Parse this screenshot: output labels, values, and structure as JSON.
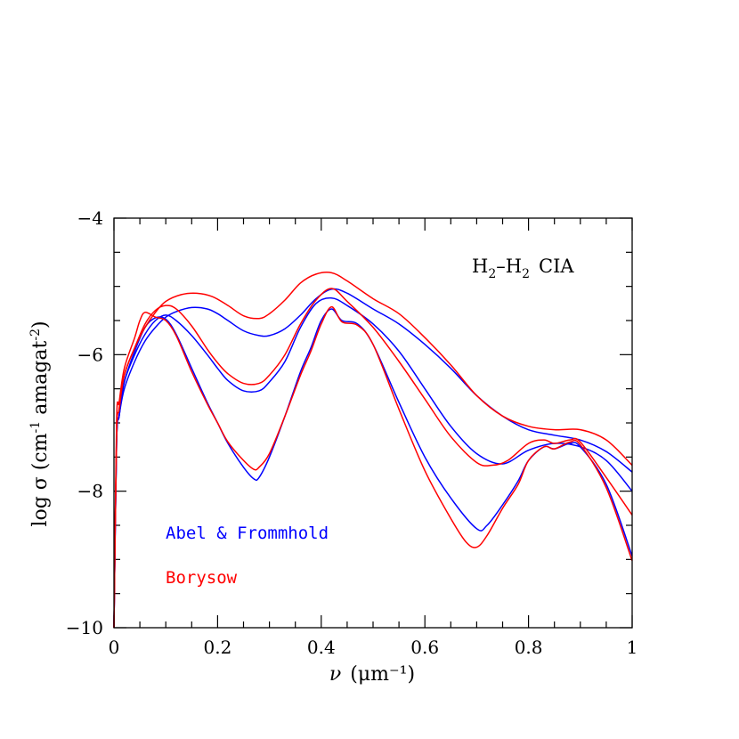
{
  "chart_data": {
    "type": "line",
    "title": "",
    "annotation": {
      "base": "H",
      "sub1": "2",
      "dash": "–",
      "base2": "H",
      "sub2": "2",
      "suffix": "CIA"
    },
    "xlabel": {
      "symbol": "ν",
      "unit": "(μm⁻¹)"
    },
    "ylabel": {
      "pre": "log σ (cm",
      "sup1": "-1",
      "mid": " amagat",
      "sup2": "-2",
      "post": ")"
    },
    "xlim": [
      0,
      1
    ],
    "ylim": [
      -10,
      -4
    ],
    "xticks": [
      0,
      0.2,
      0.4,
      0.6,
      0.8,
      1
    ],
    "xtick_labels": [
      "0",
      "0.2",
      "0.4",
      "0.6",
      "0.8",
      "1"
    ],
    "yticks": [
      -10,
      -8,
      -6,
      -4
    ],
    "ytick_labels": [
      "−10",
      "−8",
      "−6",
      "−4"
    ],
    "legend": [
      {
        "name": "Abel & Frommhold",
        "color": "#0000ff"
      },
      {
        "name": "Borysow",
        "color": "#ff0000"
      }
    ],
    "series": [
      {
        "name": "Abel & Frommhold",
        "color": "#0000ff",
        "x": [
          0,
          0.005,
          0.01,
          0.02,
          0.04,
          0.06,
          0.08,
          0.1,
          0.12,
          0.15,
          0.18,
          0.2,
          0.22,
          0.25,
          0.28,
          0.3,
          0.33,
          0.36,
          0.39,
          0.42,
          0.45,
          0.5,
          0.55,
          0.6,
          0.65,
          0.7,
          0.75,
          0.8,
          0.85,
          0.9,
          0.95,
          1.0
        ],
        "values": [
          -10,
          -7.3,
          -6.9,
          -6.5,
          -6.1,
          -5.8,
          -5.6,
          -5.45,
          -5.37,
          -5.31,
          -5.33,
          -5.4,
          -5.5,
          -5.65,
          -5.72,
          -5.72,
          -5.62,
          -5.42,
          -5.18,
          -5.04,
          -5.1,
          -5.33,
          -5.55,
          -5.85,
          -6.2,
          -6.6,
          -6.9,
          -7.1,
          -7.18,
          -7.25,
          -7.42,
          -7.72
        ]
      },
      {
        "name": "Abel & Frommhold",
        "color": "#0000ff",
        "x": [
          0,
          0.005,
          0.01,
          0.02,
          0.04,
          0.06,
          0.08,
          0.1,
          0.12,
          0.15,
          0.18,
          0.2,
          0.22,
          0.25,
          0.28,
          0.3,
          0.33,
          0.36,
          0.39,
          0.42,
          0.45,
          0.5,
          0.55,
          0.6,
          0.65,
          0.7,
          0.75,
          0.8,
          0.85,
          0.9,
          0.95,
          1.0
        ],
        "values": [
          -10,
          -7.3,
          -6.9,
          -6.4,
          -6.0,
          -5.7,
          -5.5,
          -5.42,
          -5.5,
          -5.72,
          -6.0,
          -6.2,
          -6.38,
          -6.53,
          -6.53,
          -6.4,
          -6.1,
          -5.6,
          -5.25,
          -5.17,
          -5.28,
          -5.55,
          -5.95,
          -6.5,
          -7.05,
          -7.45,
          -7.6,
          -7.4,
          -7.3,
          -7.35,
          -7.55,
          -8.0
        ]
      },
      {
        "name": "Abel & Frommhold",
        "color": "#0000ff",
        "x": [
          0,
          0.005,
          0.01,
          0.02,
          0.04,
          0.06,
          0.08,
          0.1,
          0.12,
          0.15,
          0.18,
          0.2,
          0.22,
          0.25,
          0.27,
          0.28,
          0.3,
          0.33,
          0.36,
          0.38,
          0.4,
          0.42,
          0.44,
          0.47,
          0.5,
          0.55,
          0.6,
          0.65,
          0.7,
          0.72,
          0.75,
          0.78,
          0.8,
          0.83,
          0.85,
          0.88,
          0.9,
          0.95,
          1.0
        ],
        "values": [
          -10,
          -7.3,
          -6.9,
          -6.4,
          -5.95,
          -5.6,
          -5.46,
          -5.48,
          -5.7,
          -6.2,
          -6.7,
          -7.0,
          -7.3,
          -7.65,
          -7.82,
          -7.8,
          -7.5,
          -6.9,
          -6.25,
          -5.9,
          -5.5,
          -5.33,
          -5.5,
          -5.55,
          -5.85,
          -6.7,
          -7.5,
          -8.1,
          -8.55,
          -8.5,
          -8.2,
          -7.85,
          -7.55,
          -7.35,
          -7.38,
          -7.3,
          -7.35,
          -7.9,
          -8.95
        ]
      },
      {
        "name": "Borysow",
        "color": "#ff0000",
        "x": [
          0,
          0.005,
          0.01,
          0.02,
          0.04,
          0.06,
          0.08,
          0.1,
          0.13,
          0.16,
          0.19,
          0.22,
          0.25,
          0.28,
          0.3,
          0.33,
          0.36,
          0.39,
          0.42,
          0.45,
          0.5,
          0.55,
          0.6,
          0.65,
          0.7,
          0.75,
          0.8,
          0.85,
          0.9,
          0.95,
          1.0
        ],
        "values": [
          -10,
          -7.2,
          -6.8,
          -6.3,
          -5.9,
          -5.6,
          -5.38,
          -5.22,
          -5.12,
          -5.1,
          -5.15,
          -5.28,
          -5.43,
          -5.47,
          -5.4,
          -5.2,
          -4.95,
          -4.82,
          -4.8,
          -4.92,
          -5.18,
          -5.4,
          -5.75,
          -6.15,
          -6.6,
          -6.9,
          -7.05,
          -7.1,
          -7.1,
          -7.25,
          -7.62
        ]
      },
      {
        "name": "Borysow",
        "color": "#ff0000",
        "x": [
          0,
          0.005,
          0.01,
          0.02,
          0.04,
          0.06,
          0.08,
          0.1,
          0.12,
          0.15,
          0.18,
          0.2,
          0.22,
          0.25,
          0.28,
          0.3,
          0.33,
          0.36,
          0.39,
          0.42,
          0.45,
          0.5,
          0.55,
          0.6,
          0.65,
          0.7,
          0.73,
          0.76,
          0.8,
          0.83,
          0.85,
          0.88,
          0.9,
          0.95,
          1.0
        ],
        "values": [
          -10,
          -7.2,
          -6.8,
          -6.3,
          -5.9,
          -5.55,
          -5.35,
          -5.28,
          -5.33,
          -5.58,
          -5.92,
          -6.12,
          -6.28,
          -6.42,
          -6.42,
          -6.3,
          -6.0,
          -5.55,
          -5.2,
          -5.03,
          -5.22,
          -5.6,
          -6.1,
          -6.65,
          -7.2,
          -7.58,
          -7.62,
          -7.55,
          -7.3,
          -7.25,
          -7.3,
          -7.25,
          -7.28,
          -7.8,
          -8.35
        ]
      },
      {
        "name": "Borysow",
        "color": "#ff0000",
        "x": [
          0,
          0.005,
          0.01,
          0.02,
          0.04,
          0.05,
          0.06,
          0.08,
          0.1,
          0.12,
          0.15,
          0.18,
          0.2,
          0.22,
          0.25,
          0.27,
          0.28,
          0.3,
          0.33,
          0.36,
          0.38,
          0.4,
          0.42,
          0.44,
          0.47,
          0.5,
          0.55,
          0.6,
          0.65,
          0.68,
          0.7,
          0.72,
          0.75,
          0.78,
          0.8,
          0.83,
          0.85,
          0.88,
          0.9,
          0.95,
          1.0
        ],
        "values": [
          -10,
          -7.0,
          -6.7,
          -6.2,
          -5.75,
          -5.5,
          -5.38,
          -5.45,
          -5.5,
          -5.72,
          -6.25,
          -6.72,
          -7.0,
          -7.28,
          -7.55,
          -7.68,
          -7.65,
          -7.45,
          -6.9,
          -6.3,
          -5.95,
          -5.55,
          -5.3,
          -5.52,
          -5.57,
          -5.85,
          -6.8,
          -7.7,
          -8.4,
          -8.75,
          -8.82,
          -8.65,
          -8.25,
          -7.9,
          -7.55,
          -7.35,
          -7.38,
          -7.28,
          -7.32,
          -7.95,
          -9.02
        ]
      }
    ]
  }
}
